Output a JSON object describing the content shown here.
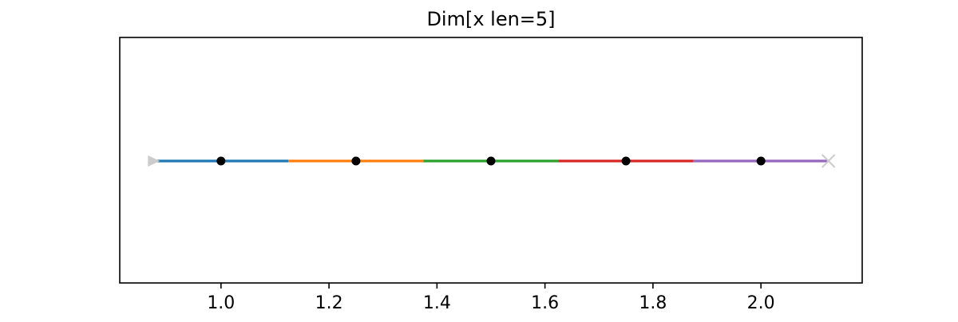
{
  "chart_data": {
    "type": "line",
    "title": "Dim[x len=5]",
    "xlabel": "",
    "ylabel": "",
    "xlim": [
      0.8125,
      2.1875
    ],
    "x_ticks": [
      1.0,
      1.2,
      1.4,
      1.6,
      1.8,
      2.0
    ],
    "x_tick_labels": [
      "1.0",
      "1.2",
      "1.4",
      "1.6",
      "1.8",
      "2.0"
    ],
    "y_ticks_visible": false,
    "grid": false,
    "legend": false,
    "points": [
      1.0,
      1.25,
      1.5,
      1.75,
      2.0
    ],
    "point_color": "#000000",
    "cells": [
      {
        "start": 0.875,
        "end": 1.125,
        "color": "#1f77b4"
      },
      {
        "start": 1.125,
        "end": 1.375,
        "color": "#ff7f0e"
      },
      {
        "start": 1.375,
        "end": 1.625,
        "color": "#2ca02c"
      },
      {
        "start": 1.625,
        "end": 1.875,
        "color": "#d62728"
      },
      {
        "start": 1.875,
        "end": 2.125,
        "color": "#9467bd"
      }
    ],
    "start_marker": {
      "x": 0.875,
      "shape": "triangle-right",
      "color": "#cccccc"
    },
    "end_marker": {
      "x": 2.125,
      "shape": "x",
      "color": "#cccccc"
    }
  }
}
